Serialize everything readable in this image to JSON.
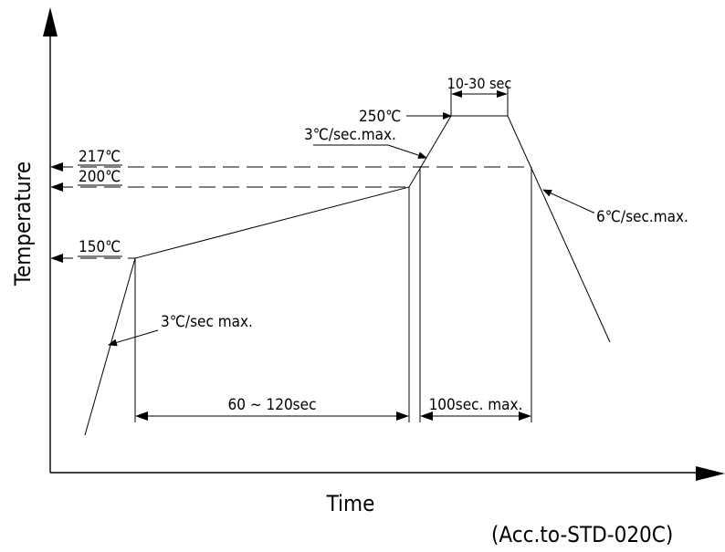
{
  "labels": {
    "y_axis": "Temperature",
    "x_axis": "Time",
    "standard": "(Acc.to-STD-020C)",
    "t150": "150℃",
    "t200": "200℃",
    "t217": "217℃",
    "t250": "250℃",
    "rate_ramp_up": "3℃/sec max.",
    "rate_ramp_peak": "3℃/sec.max.",
    "rate_cool": "6℃/sec.max.",
    "preheat_time": "60 ~ 120sec",
    "liquidus_time": "100sec. max.",
    "peak_time": "10-30 sec"
  }
}
